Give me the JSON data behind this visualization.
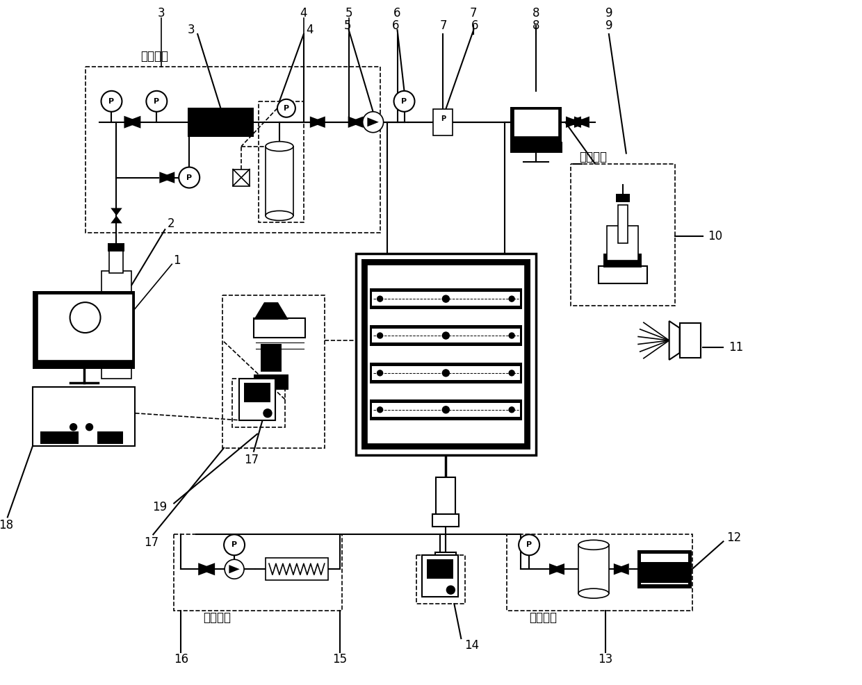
{
  "figsize": [
    12.4,
    9.86
  ],
  "dpi": 100,
  "bg_color": "#ffffff",
  "black": "#000000",
  "lw": 1.2,
  "lw_thick": 2.5,
  "component_labels": [
    "1",
    "2",
    "3",
    "4",
    "5",
    "6",
    "7",
    "8",
    "9",
    "10",
    "11",
    "12",
    "13",
    "14",
    "15",
    "16",
    "17",
    "18",
    "19"
  ],
  "box_texts": {
    "peiq": "配气装置",
    "jinyang": "进样装置",
    "zhenkong": "真空装置",
    "tiaoya": "调压装置"
  }
}
